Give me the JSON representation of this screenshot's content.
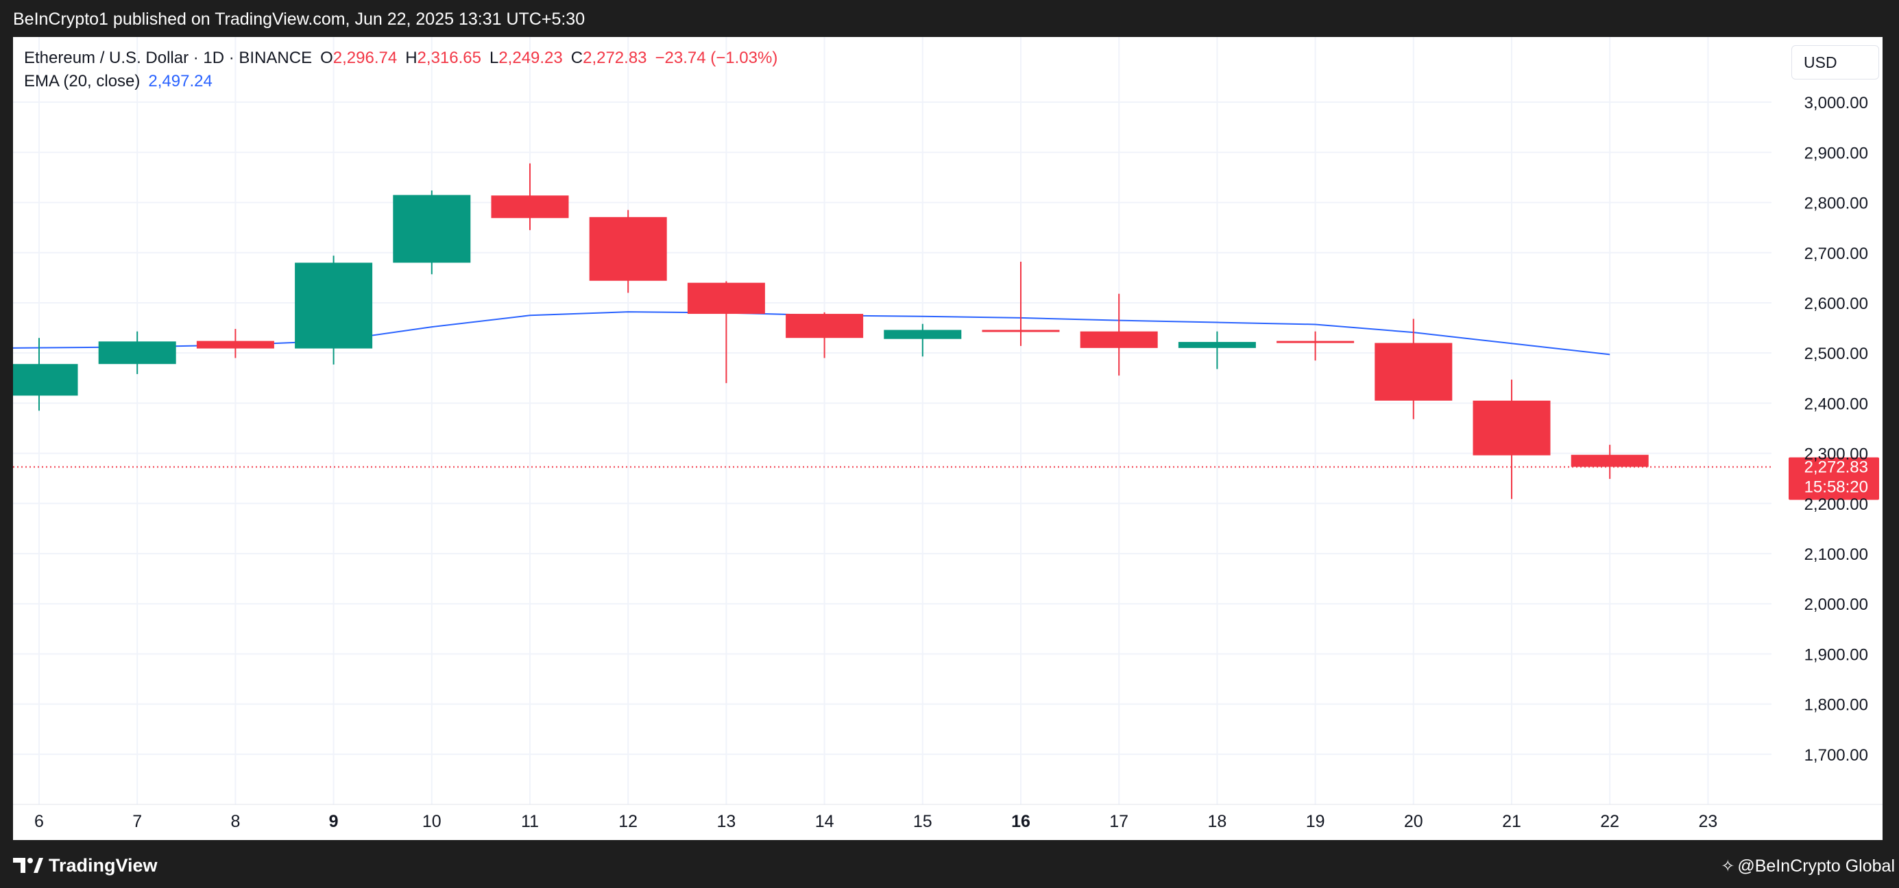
{
  "header": {
    "published": "BeInCrypto1 published on TradingView.com, Jun 22, 2025 13:31 UTC+5:30"
  },
  "legend": {
    "symbol": "Ethereum / U.S. Dollar · 1D · BINANCE",
    "o_label": "O",
    "o_value": "2,296.74",
    "h_label": "H",
    "h_value": "2,316.65",
    "l_label": "L",
    "l_value": "2,249.23",
    "c_label": "C",
    "c_value": "2,272.83",
    "change": "−23.74 (−1.03%)",
    "ema_label": "EMA (20, close)",
    "ema_value": "2,497.24"
  },
  "currency_button": "USD",
  "footer": {
    "brand": "TradingView",
    "watermark": "@BeInCrypto Global"
  },
  "colors": {
    "up": "#089981",
    "down": "#f23645",
    "ema": "#2962ff",
    "grid": "#f0f3fa",
    "axis_text": "#131722"
  },
  "chart_data": {
    "type": "candlestick",
    "ylim": [
      1600,
      3130
    ],
    "y_ticks": [
      1700,
      1800,
      1900,
      2000,
      2100,
      2200,
      2300,
      2400,
      2500,
      2600,
      2700,
      2800,
      2900,
      3000
    ],
    "y_tick_labels": [
      "1,700.00",
      "1,800.00",
      "1,900.00",
      "2,000.00",
      "2,100.00",
      "2,200.00",
      "2,300.00",
      "2,400.00",
      "2,500.00",
      "2,600.00",
      "2,700.00",
      "2,800.00",
      "2,900.00",
      "3,000.00"
    ],
    "x_labels": [
      "6",
      "7",
      "8",
      "9",
      "10",
      "11",
      "12",
      "13",
      "14",
      "15",
      "16",
      "17",
      "18",
      "19",
      "20",
      "21",
      "22",
      "23"
    ],
    "x_bold": [
      "9",
      "16"
    ],
    "candles": [
      {
        "x": "6",
        "open": 2415,
        "high": 2530,
        "low": 2385,
        "close": 2478
      },
      {
        "x": "7",
        "open": 2478,
        "high": 2543,
        "low": 2458,
        "close": 2523
      },
      {
        "x": "8",
        "open": 2524,
        "high": 2548,
        "low": 2490,
        "close": 2509
      },
      {
        "x": "9",
        "open": 2509,
        "high": 2694,
        "low": 2477,
        "close": 2680
      },
      {
        "x": "10",
        "open": 2680,
        "high": 2824,
        "low": 2657,
        "close": 2815
      },
      {
        "x": "11",
        "open": 2814,
        "high": 2878,
        "low": 2745,
        "close": 2769
      },
      {
        "x": "12",
        "open": 2771,
        "high": 2785,
        "low": 2620,
        "close": 2644
      },
      {
        "x": "13",
        "open": 2640,
        "high": 2643,
        "low": 2440,
        "close": 2578
      },
      {
        "x": "14",
        "open": 2578,
        "high": 2581,
        "low": 2490,
        "close": 2530
      },
      {
        "x": "15",
        "open": 2528,
        "high": 2558,
        "low": 2493,
        "close": 2546
      },
      {
        "x": "16",
        "open": 2546,
        "high": 2682,
        "low": 2514,
        "close": 2543
      },
      {
        "x": "17",
        "open": 2543,
        "high": 2618,
        "low": 2455,
        "close": 2510
      },
      {
        "x": "18",
        "open": 2510,
        "high": 2543,
        "low": 2468,
        "close": 2522
      },
      {
        "x": "19",
        "open": 2524,
        "high": 2543,
        "low": 2485,
        "close": 2520
      },
      {
        "x": "20",
        "open": 2520,
        "high": 2568,
        "low": 2368,
        "close": 2405
      },
      {
        "x": "21",
        "open": 2405,
        "high": 2447,
        "low": 2209,
        "close": 2296
      },
      {
        "x": "22",
        "open": 2297,
        "high": 2317,
        "low": 2249,
        "close": 2273
      }
    ],
    "ema": {
      "name": "EMA (20, close)",
      "x": [
        "6",
        "7",
        "8",
        "9",
        "10",
        "11",
        "12",
        "13",
        "14",
        "15",
        "16",
        "17",
        "18",
        "19",
        "20",
        "21",
        "22"
      ],
      "values": [
        2510,
        2512,
        2516,
        2524,
        2552,
        2575,
        2582,
        2580,
        2575,
        2573,
        2570,
        2565,
        2561,
        2557,
        2541,
        2519,
        2497
      ]
    },
    "last_price": {
      "value": 2272.83,
      "label": "2,272.83",
      "countdown": "15:58:20"
    }
  }
}
